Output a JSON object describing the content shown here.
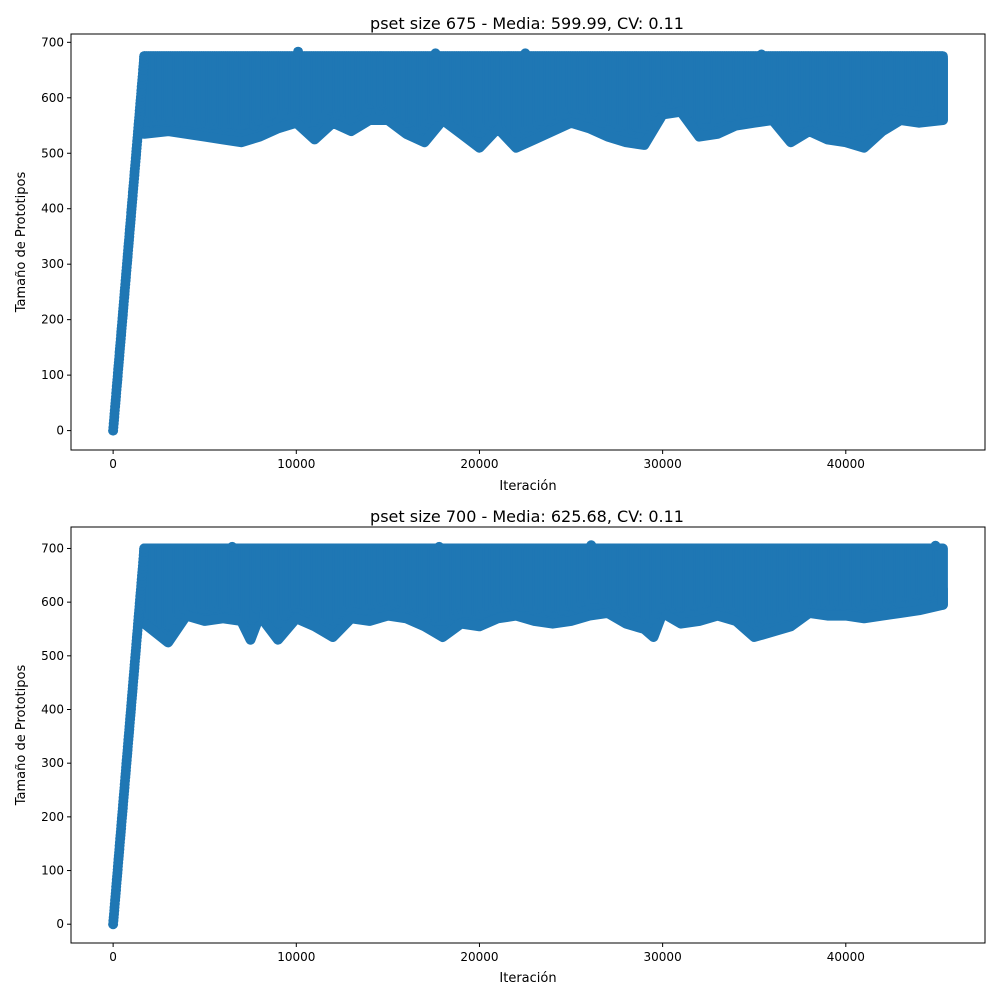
{
  "chart_data": [
    {
      "type": "scatter",
      "title": "pset size 675 - Media: 599.99, CV: 0.11",
      "xlabel": "Iteración",
      "ylabel": "Tamaño de Prototipos",
      "xlim": [
        -2300,
        47600
      ],
      "ylim": [
        -35,
        715
      ],
      "xticks": [
        0,
        10000,
        20000,
        30000,
        40000
      ],
      "xtick_labels": [
        "0",
        "10000",
        "20000",
        "30000",
        "40000"
      ],
      "yticks": [
        0,
        100,
        200,
        300,
        400,
        500,
        600,
        700
      ],
      "ytick_labels": [
        "0",
        "100",
        "200",
        "300",
        "400",
        "500",
        "600",
        "700"
      ],
      "grid": false,
      "color": "#1f77b4",
      "ramp": {
        "x": [
          0,
          1700
        ],
        "y": [
          0,
          675
        ]
      },
      "band": {
        "x": [
          1700,
          45300
        ],
        "upper": 675
      },
      "lower_envelope": {
        "x": [
          1700,
          3000,
          4000,
          5000,
          6000,
          7000,
          8000,
          9000,
          10000,
          11000,
          12000,
          13000,
          14000,
          15000,
          16000,
          17000,
          18000,
          19000,
          20000,
          21000,
          22000,
          23000,
          24000,
          25000,
          26000,
          27000,
          28000,
          29000,
          30000,
          31000,
          32000,
          33000,
          34000,
          35000,
          36000,
          37000,
          38000,
          39000,
          40000,
          41000,
          42000,
          43000,
          44000,
          45300
        ],
        "y": [
          535,
          540,
          535,
          530,
          525,
          520,
          530,
          545,
          555,
          525,
          555,
          540,
          560,
          560,
          535,
          520,
          560,
          535,
          510,
          545,
          510,
          525,
          540,
          555,
          545,
          530,
          520,
          515,
          570,
          575,
          530,
          535,
          550,
          555,
          560,
          520,
          540,
          525,
          520,
          510,
          540,
          560,
          555,
          560
        ]
      },
      "spikes": {
        "x": [
          10100,
          17600,
          22500,
          35400
        ],
        "y": [
          683,
          680,
          680,
          678
        ]
      },
      "tail": {
        "x": 45300,
        "y": [
          560,
          670
        ]
      }
    },
    {
      "type": "scatter",
      "title": "pset size 700 - Media: 625.68, CV: 0.11",
      "xlabel": "Iteración",
      "ylabel": "Tamaño de Prototipos",
      "xlim": [
        -2300,
        47600
      ],
      "ylim": [
        -35,
        740
      ],
      "xticks": [
        0,
        10000,
        20000,
        30000,
        40000
      ],
      "xtick_labels": [
        "0",
        "10000",
        "20000",
        "30000",
        "40000"
      ],
      "yticks": [
        0,
        100,
        200,
        300,
        400,
        500,
        600,
        700
      ],
      "ytick_labels": [
        "0",
        "100",
        "200",
        "300",
        "400",
        "500",
        "600",
        "700"
      ],
      "grid": false,
      "color": "#1f77b4",
      "ramp": {
        "x": [
          0,
          1700
        ],
        "y": [
          0,
          700
        ]
      },
      "band": {
        "x": [
          1700,
          45300
        ],
        "upper": 700
      },
      "lower_envelope": {
        "x": [
          1700,
          3000,
          4000,
          5000,
          6000,
          7000,
          7500,
          8000,
          9000,
          10000,
          11000,
          12000,
          13000,
          14000,
          15000,
          16000,
          17000,
          18000,
          19000,
          20000,
          21000,
          22000,
          23000,
          24000,
          25000,
          26000,
          27000,
          28000,
          29000,
          29500,
          30000,
          31000,
          32000,
          33000,
          34000,
          35000,
          36000,
          37000,
          38000,
          39000,
          40000,
          41000,
          42000,
          43000,
          44000,
          45300
        ],
        "y": [
          560,
          525,
          575,
          565,
          570,
          565,
          530,
          575,
          530,
          570,
          555,
          535,
          570,
          565,
          575,
          570,
          555,
          535,
          560,
          555,
          570,
          575,
          565,
          560,
          565,
          575,
          580,
          560,
          550,
          535,
          580,
          560,
          565,
          575,
          565,
          535,
          545,
          555,
          580,
          575,
          575,
          570,
          575,
          580,
          585,
          595
        ]
      },
      "spikes": {
        "x": [
          6500,
          17800,
          26100,
          44900
        ],
        "y": [
          703,
          703,
          706,
          705
        ]
      },
      "tail": {
        "x": 45300,
        "y": [
          595,
          625
        ]
      }
    }
  ]
}
